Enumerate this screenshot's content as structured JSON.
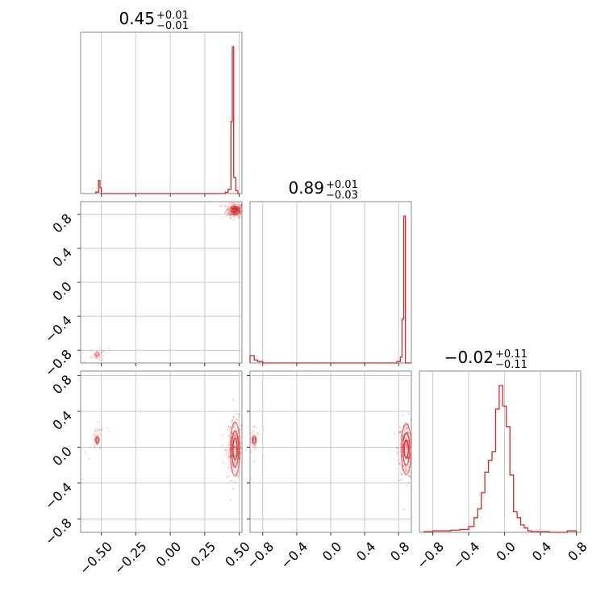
{
  "chart_data": {
    "type": "corner",
    "color": "#d62728",
    "grid": true,
    "parameters": [
      {
        "title_value": "0.45",
        "title_plus": "+0.01",
        "title_minus": "−0.01",
        "range": [
          -0.65,
          0.52
        ],
        "ticks": [
          -0.5,
          -0.25,
          0.0,
          0.25,
          0.5
        ],
        "tick_labels": [
          "−0.50",
          "−0.25",
          "0.00",
          "0.25",
          "0.50"
        ],
        "histogram": {
          "bin_edges": [
            -0.54,
            -0.52,
            -0.51,
            -0.5,
            0.4,
            0.42,
            0.44,
            0.45,
            0.46,
            0.475,
            0.49,
            0.5
          ],
          "values": [
            0.01,
            0.09,
            0.04,
            0.0,
            0.01,
            0.03,
            0.49,
            1.0,
            0.11,
            0.02,
            0.0
          ]
        }
      },
      {
        "title_value": "0.89",
        "title_plus": "+0.01",
        "title_minus": "−0.03",
        "range": [
          -0.95,
          0.95
        ],
        "ticks": [
          -0.8,
          -0.4,
          0.0,
          0.4,
          0.8
        ],
        "tick_labels": [
          "−0.8",
          "−0.4",
          "0.0",
          "0.4",
          "0.8"
        ],
        "histogram": {
          "bin_edges": [
            -0.95,
            -0.9,
            -0.86,
            -0.8,
            -0.7,
            0.78,
            0.82,
            0.84,
            0.86,
            0.88,
            0.9,
            0.92,
            0.95
          ],
          "values": [
            0.05,
            0.02,
            0.01,
            0.0,
            0.0,
            0.01,
            0.04,
            0.3,
            1.0,
            0.0,
            0.0,
            0.0
          ]
        }
      },
      {
        "title_value": "−0.02",
        "title_plus": "+0.11",
        "title_minus": "−0.11",
        "range": [
          -0.95,
          0.85
        ],
        "ticks": [
          -0.8,
          -0.4,
          0.0,
          0.4,
          0.8
        ],
        "tick_labels": [
          "−0.8",
          "−0.4",
          "0.0",
          "0.4",
          "0.8"
        ],
        "histogram": {
          "bin_edges": [
            -0.9,
            -0.8,
            -0.6,
            -0.5,
            -0.4,
            -0.34,
            -0.3,
            -0.26,
            -0.22,
            -0.18,
            -0.14,
            -0.1,
            -0.06,
            -0.02,
            0.02,
            0.06,
            0.1,
            0.14,
            0.18,
            0.22,
            0.26,
            0.3,
            0.4,
            0.5,
            0.6,
            0.7,
            0.8
          ],
          "values": [
            0.005,
            0.01,
            0.015,
            0.02,
            0.04,
            0.1,
            0.16,
            0.27,
            0.41,
            0.49,
            0.55,
            0.84,
            1.0,
            0.86,
            0.72,
            0.39,
            0.14,
            0.1,
            0.05,
            0.03,
            0.01,
            0.005,
            0.005,
            0.0,
            0.0,
            0.01
          ]
        }
      }
    ],
    "panels_2d": [
      {
        "x_param": 0,
        "y_param": 1,
        "clusters": [
          {
            "cx": 0.47,
            "cy": 0.85,
            "sx": 0.02,
            "sy": 0.03,
            "weight": 0.9,
            "contour_levels": [
              [
                0.03,
                0.045
              ],
              [
                0.02,
                0.03
              ],
              [
                0.01,
                0.015
              ]
            ]
          },
          {
            "cx": -0.53,
            "cy": -0.85,
            "sx": 0.015,
            "sy": 0.03,
            "weight": 0.1,
            "contour_levels": [
              [
                0.015,
                0.02
              ]
            ]
          }
        ]
      },
      {
        "x_param": 0,
        "y_param": 2,
        "clusters": [
          {
            "cx": 0.47,
            "cy": -0.02,
            "sx": 0.02,
            "sy": 0.12,
            "weight": 0.9,
            "contour_levels": [
              [
                0.035,
                0.3
              ],
              [
                0.025,
                0.2
              ],
              [
                0.015,
                0.12
              ]
            ]
          },
          {
            "cx": -0.53,
            "cy": 0.08,
            "sx": 0.015,
            "sy": 0.06,
            "weight": 0.1,
            "contour_levels": [
              [
                0.015,
                0.04
              ],
              [
                0.008,
                0.025
              ]
            ]
          }
        ]
      },
      {
        "x_param": 1,
        "y_param": 2,
        "clusters": [
          {
            "cx": 0.89,
            "cy": -0.02,
            "sx": 0.03,
            "sy": 0.12,
            "weight": 0.9,
            "contour_levels": [
              [
                0.06,
                0.28
              ],
              [
                0.04,
                0.18
              ],
              [
                0.025,
                0.1
              ]
            ]
          },
          {
            "cx": -0.9,
            "cy": 0.08,
            "sx": 0.02,
            "sy": 0.06,
            "weight": 0.1,
            "contour_levels": [
              [
                0.025,
                0.05
              ],
              [
                0.015,
                0.03
              ]
            ]
          }
        ]
      }
    ]
  }
}
